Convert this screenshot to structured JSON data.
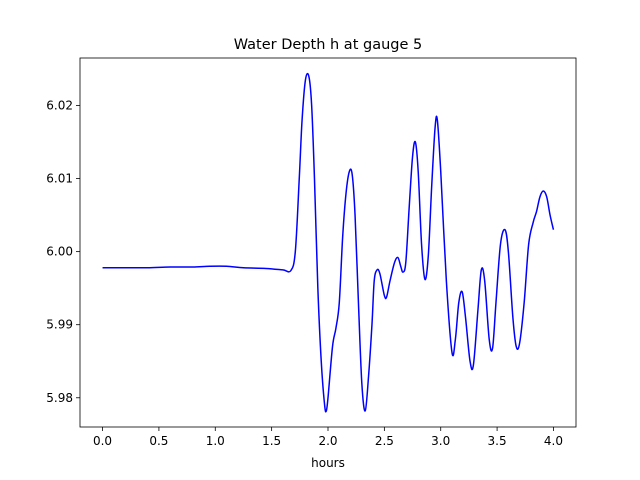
{
  "chart_data": {
    "type": "line",
    "title": "Water Depth h at gauge 5",
    "xlabel": "hours",
    "ylabel": "",
    "xlim": [
      -0.2,
      4.2
    ],
    "ylim": [
      5.976,
      6.0265
    ],
    "xticks": [
      0.0,
      0.5,
      1.0,
      1.5,
      2.0,
      2.5,
      3.0,
      3.5,
      4.0
    ],
    "xtick_labels": [
      "0.0",
      "0.5",
      "1.0",
      "1.5",
      "2.0",
      "2.5",
      "3.0",
      "3.5",
      "4.0"
    ],
    "yticks": [
      5.98,
      5.99,
      6.0,
      6.01,
      6.02
    ],
    "ytick_labels": [
      "5.98",
      "5.99",
      "6.00",
      "6.01",
      "6.02"
    ],
    "grid": false,
    "series": [
      {
        "color": "#0000ff",
        "points": [
          [
            0.0,
            5.9978
          ],
          [
            0.2,
            5.9978
          ],
          [
            0.4,
            5.9978
          ],
          [
            0.6,
            5.9979
          ],
          [
            0.8,
            5.9979
          ],
          [
            0.95,
            5.998
          ],
          [
            1.1,
            5.998
          ],
          [
            1.25,
            5.9978
          ],
          [
            1.45,
            5.9977
          ],
          [
            1.6,
            5.9975
          ],
          [
            1.67,
            5.9974
          ],
          [
            1.71,
            6.0
          ],
          [
            1.745,
            6.01
          ],
          [
            1.77,
            6.018
          ],
          [
            1.8,
            6.0235
          ],
          [
            1.83,
            6.024
          ],
          [
            1.855,
            6.02
          ],
          [
            1.88,
            6.01
          ],
          [
            1.91,
            5.995
          ],
          [
            1.94,
            5.985
          ],
          [
            1.97,
            5.979
          ],
          [
            1.985,
            5.9782
          ],
          [
            2.0,
            5.98
          ],
          [
            2.04,
            5.987
          ],
          [
            2.07,
            5.9895
          ],
          [
            2.1,
            5.993
          ],
          [
            2.13,
            6.002
          ],
          [
            2.16,
            6.008
          ],
          [
            2.19,
            6.011
          ],
          [
            2.215,
            6.0105
          ],
          [
            2.24,
            6.005
          ],
          [
            2.27,
            5.993
          ],
          [
            2.3,
            5.982
          ],
          [
            2.33,
            5.9782
          ],
          [
            2.36,
            5.983
          ],
          [
            2.39,
            5.99
          ],
          [
            2.41,
            5.996
          ],
          [
            2.435,
            5.9975
          ],
          [
            2.46,
            5.997
          ],
          [
            2.5,
            5.994
          ],
          [
            2.52,
            5.9938
          ],
          [
            2.55,
            5.996
          ],
          [
            2.59,
            5.9985
          ],
          [
            2.62,
            5.9992
          ],
          [
            2.645,
            5.998
          ],
          [
            2.665,
            5.9972
          ],
          [
            2.69,
            5.9985
          ],
          [
            2.72,
            6.006
          ],
          [
            2.75,
            6.013
          ],
          [
            2.775,
            6.015
          ],
          [
            2.8,
            6.011
          ],
          [
            2.83,
            6.001
          ],
          [
            2.86,
            5.9962
          ],
          [
            2.89,
            5.9995
          ],
          [
            2.92,
            6.009
          ],
          [
            2.95,
            6.017
          ],
          [
            2.97,
            6.018
          ],
          [
            3.0,
            6.011
          ],
          [
            3.05,
            5.996
          ],
          [
            3.1,
            5.9862
          ],
          [
            3.13,
            5.988
          ],
          [
            3.16,
            5.993
          ],
          [
            3.19,
            5.9945
          ],
          [
            3.22,
            5.991
          ],
          [
            3.26,
            5.985
          ],
          [
            3.29,
            5.9845
          ],
          [
            3.33,
            5.992
          ],
          [
            3.36,
            5.9975
          ],
          [
            3.39,
            5.996
          ],
          [
            3.43,
            5.988
          ],
          [
            3.46,
            5.9868
          ],
          [
            3.49,
            5.993
          ],
          [
            3.53,
            6.001
          ],
          [
            3.57,
            6.003
          ],
          [
            3.6,
            6.0
          ],
          [
            3.64,
            5.991
          ],
          [
            3.67,
            5.987
          ],
          [
            3.7,
            5.9875
          ],
          [
            3.74,
            5.993
          ],
          [
            3.78,
            6.001
          ],
          [
            3.82,
            6.004
          ],
          [
            3.85,
            6.0055
          ],
          [
            3.88,
            6.0075
          ],
          [
            3.91,
            6.0083
          ],
          [
            3.94,
            6.0075
          ],
          [
            3.97,
            6.005
          ],
          [
            4.0,
            6.003
          ]
        ]
      }
    ]
  }
}
